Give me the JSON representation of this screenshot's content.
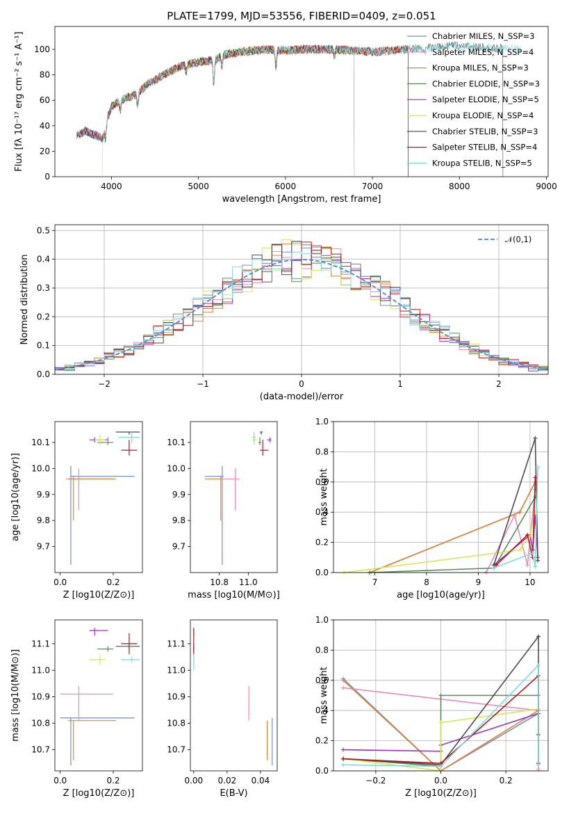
{
  "figure_title": "PLATE=1799, MJD=53556, FIBERID=0409, z=0.051",
  "model_colors": [
    "#6a8fd0",
    "#e98bb5",
    "#de8434",
    "#5a8a5a",
    "#9a35b8",
    "#d6e855",
    "#4a4a4a",
    "#b01a1a",
    "#80d8dc"
  ],
  "chart_data": [
    {
      "id": "spectrum",
      "type": "line",
      "title": "PLATE=1799, MJD=53556, FIBERID=0409, z=0.051",
      "xlabel": "wavelength [Angstrom, rest frame]",
      "ylabel": "Flux [fλ 10⁻¹⁷ erg cm⁻² s⁻¹ A⁻¹]",
      "xlim": [
        3350,
        9020
      ],
      "ylim": [
        0,
        118
      ],
      "xticks": [
        4000,
        5000,
        6000,
        7000,
        8000,
        9000
      ],
      "yticks": [
        0,
        20,
        40,
        60,
        80,
        100
      ],
      "legend_position": "upper right",
      "series": [
        {
          "name": "Chabrier MILES, N_SSP=3",
          "x_range": [
            3600,
            7410
          ]
        },
        {
          "name": "Salpeter MILES, N_SSP=4",
          "x_range": [
            3600,
            7410
          ]
        },
        {
          "name": "Kroupa MILES, N_SSP=3",
          "x_range": [
            3600,
            7410
          ]
        },
        {
          "name": "Chabrier ELODIE, N_SSP=3",
          "x_range": [
            3600,
            6790
          ]
        },
        {
          "name": "Salpeter ELODIE, N_SSP=5",
          "x_range": [
            3600,
            6790
          ]
        },
        {
          "name": "Kroupa ELODIE, N_SSP=4",
          "x_range": [
            3900,
            6790
          ]
        },
        {
          "name": "Chabrier STELIB, N_SSP=3",
          "x_range": [
            3600,
            8500
          ]
        },
        {
          "name": "Salpeter STELIB, N_SSP=4",
          "x_range": [
            3600,
            7410
          ]
        },
        {
          "name": "Kroupa STELIB, N_SSP=5",
          "x_range": [
            3600,
            8700
          ]
        }
      ],
      "continuum_points": [
        [
          3600,
          32
        ],
        [
          3700,
          36
        ],
        [
          3800,
          33
        ],
        [
          3900,
          30
        ],
        [
          3950,
          45
        ],
        [
          4000,
          55
        ],
        [
          4100,
          60
        ],
        [
          4300,
          65
        ],
        [
          4400,
          72
        ],
        [
          4600,
          80
        ],
        [
          4800,
          87
        ],
        [
          5000,
          90
        ],
        [
          5200,
          92
        ],
        [
          5300,
          96
        ],
        [
          5500,
          98
        ],
        [
          5800,
          100
        ],
        [
          6000,
          99
        ],
        [
          6200,
          100
        ],
        [
          6500,
          100
        ],
        [
          6800,
          99
        ],
        [
          7000,
          98
        ],
        [
          7200,
          99
        ],
        [
          7400,
          100
        ],
        [
          7600,
          101
        ],
        [
          7800,
          102
        ],
        [
          8000,
          103
        ],
        [
          8200,
          102
        ],
        [
          8400,
          101
        ],
        [
          8600,
          100
        ],
        [
          8700,
          100
        ]
      ],
      "dips": [
        [
          3933,
          -10
        ],
        [
          4101,
          -8
        ],
        [
          4300,
          -10
        ],
        [
          4861,
          -6
        ],
        [
          5175,
          -18
        ],
        [
          5270,
          -8
        ],
        [
          5890,
          -14
        ],
        [
          6563,
          -5
        ],
        [
          7600,
          -6
        ]
      ]
    },
    {
      "id": "residuals",
      "type": "histogram",
      "xlabel": "(data-model)/error",
      "ylabel": "Normed distribution",
      "xlim": [
        -2.5,
        2.5
      ],
      "ylim": [
        0,
        0.52
      ],
      "xticks": [
        -2,
        -1,
        0,
        1,
        2
      ],
      "yticks": [
        0.0,
        0.1,
        0.2,
        0.3,
        0.4,
        0.5
      ],
      "grid": true,
      "legend_position": "upper right",
      "reference_curve": {
        "name": "𝒩(0,1)",
        "mean": 0,
        "sigma": 1,
        "style": "dashed"
      },
      "bin_range": [
        -2.5,
        2.5
      ],
      "bins": 50
    },
    {
      "id": "age-vs-z",
      "type": "scatter",
      "xlabel": "Z [log10(Z/Z⊙)]",
      "ylabel": "age  [log10(age/yr)]",
      "xlim": [
        -0.02,
        0.31
      ],
      "ylim": [
        9.6,
        10.18
      ],
      "xticks": [
        0.0,
        0.2
      ],
      "yticks": [
        9.7,
        9.8,
        9.9,
        10.0,
        10.1
      ],
      "points": [
        {
          "x": 0.04,
          "y": 9.97,
          "xerr": [
            0.04,
            0.28
          ],
          "yerr": [
            9.63,
            10.01
          ]
        },
        {
          "x": 0.07,
          "y": 9.96,
          "xerr": [
            0.02,
            0.2
          ],
          "yerr": [
            9.84,
            10.0
          ]
        },
        {
          "x": 0.05,
          "y": 9.96,
          "xerr": [
            0.03,
            0.21
          ],
          "yerr": [
            9.8,
            9.97
          ]
        },
        {
          "x": 0.18,
          "y": 10.1,
          "xerr": [
            0.14,
            0.2
          ],
          "yerr": [
            10.09,
            10.12
          ]
        },
        {
          "x": 0.13,
          "y": 10.11,
          "xerr": [
            0.11,
            0.18
          ],
          "yerr": [
            10.1,
            10.12
          ]
        },
        {
          "x": 0.15,
          "y": 10.11,
          "xerr": [
            0.13,
            0.17
          ],
          "yerr": [
            10.09,
            10.13
          ]
        },
        {
          "x": 0.26,
          "y": 10.14,
          "xerr": [
            0.21,
            0.3
          ],
          "yerr": [
            10.13,
            10.14
          ]
        },
        {
          "x": 0.26,
          "y": 10.07,
          "xerr": [
            0.23,
            0.29
          ],
          "yerr": [
            10.05,
            10.11
          ]
        },
        {
          "x": 0.27,
          "y": 10.12,
          "xerr": [
            0.22,
            0.3
          ],
          "yerr": [
            10.1,
            10.14
          ]
        }
      ]
    },
    {
      "id": "age-vs-mass",
      "type": "scatter",
      "xlabel": "mass [log10(M/M⊙)]",
      "ylabel": "",
      "xlim": [
        10.6,
        11.2
      ],
      "ylim": [
        9.6,
        10.18
      ],
      "xticks": [
        10.8,
        11.0
      ],
      "yticks": [
        9.7,
        9.8,
        9.9,
        10.0,
        10.1
      ],
      "points": [
        {
          "x": 10.82,
          "y": 9.97,
          "xerr": [
            10.7,
            10.83
          ],
          "yerr": [
            9.63,
            10.01
          ]
        },
        {
          "x": 10.91,
          "y": 9.96,
          "xerr": [
            10.81,
            10.94
          ],
          "yerr": [
            9.84,
            10.0
          ]
        },
        {
          "x": 10.81,
          "y": 9.96,
          "xerr": [
            10.7,
            10.82
          ],
          "yerr": [
            9.8,
            9.97
          ]
        },
        {
          "x": 11.08,
          "y": 10.1,
          "xerr": [
            11.07,
            11.09
          ],
          "yerr": [
            10.09,
            10.12
          ]
        },
        {
          "x": 11.15,
          "y": 10.11,
          "xerr": [
            11.13,
            11.16
          ],
          "yerr": [
            10.1,
            10.12
          ]
        },
        {
          "x": 11.04,
          "y": 10.11,
          "xerr": [
            11.03,
            11.06
          ],
          "yerr": [
            10.09,
            10.13
          ]
        },
        {
          "x": 11.09,
          "y": 10.14,
          "xerr": [
            11.08,
            11.1
          ],
          "yerr": [
            10.13,
            10.14
          ]
        },
        {
          "x": 11.1,
          "y": 10.07,
          "xerr": [
            11.08,
            11.14
          ],
          "yerr": [
            10.05,
            10.11
          ]
        },
        {
          "x": 11.04,
          "y": 10.12,
          "xerr": [
            11.03,
            11.05
          ],
          "yerr": [
            10.1,
            10.14
          ]
        }
      ]
    },
    {
      "id": "weight-vs-age",
      "type": "line",
      "xlabel": "age  [log10(age/yr)]",
      "ylabel": "mass weight",
      "xlim": [
        6.2,
        10.35
      ],
      "ylim": [
        0,
        1.0
      ],
      "xticks": [
        7,
        8,
        9,
        10
      ],
      "yticks": [
        0.0,
        0.2,
        0.4,
        0.6,
        0.8,
        1.0
      ],
      "grid": true,
      "series": [
        {
          "x": [
            6.9,
            9.8,
            10.1
          ],
          "y": [
            0.0,
            0.4,
            0.6
          ]
        },
        {
          "x": [
            9.15,
            9.7,
            9.95,
            10.1
          ],
          "y": [
            0.0,
            0.38,
            0.05,
            0.55
          ]
        },
        {
          "x": [
            6.9,
            9.8,
            10.1
          ],
          "y": [
            0.0,
            0.4,
            0.6
          ]
        },
        {
          "x": [
            6.9,
            9.3,
            10.1
          ],
          "y": [
            0.0,
            0.03,
            0.5
          ]
        },
        {
          "x": [
            9.3,
            10.0,
            10.05,
            10.1,
            10.15
          ],
          "y": [
            0.05,
            0.25,
            0.15,
            0.38,
            0.1
          ]
        },
        {
          "x": [
            6.4,
            9.8,
            10.0,
            10.1
          ],
          "y": [
            0.0,
            0.15,
            0.25,
            0.4
          ]
        },
        {
          "x": [
            9.3,
            10.1,
            10.15
          ],
          "y": [
            0.05,
            0.89,
            0.08
          ]
        },
        {
          "x": [
            9.35,
            9.95,
            10.05,
            10.1
          ],
          "y": [
            0.05,
            0.25,
            0.1,
            0.63
          ]
        },
        {
          "x": [
            9.3,
            10.05,
            10.1,
            10.15
          ],
          "y": [
            0.03,
            0.13,
            0.04,
            0.7
          ]
        }
      ]
    },
    {
      "id": "mass-vs-z",
      "type": "scatter",
      "xlabel": "Z [log10(Z/Z⊙)]",
      "ylabel": "mass [log10(M/M⊙)]",
      "xlim": [
        -0.02,
        0.31
      ],
      "ylim": [
        10.62,
        11.19
      ],
      "xticks": [
        0.0,
        0.2
      ],
      "yticks": [
        10.7,
        10.8,
        10.9,
        11.0,
        11.1
      ],
      "points": [
        {
          "x": 0.04,
          "y": 10.82,
          "xerr": [
            0.0,
            0.28
          ],
          "yerr": [
            10.64,
            10.82
          ]
        },
        {
          "x": 0.07,
          "y": 10.91,
          "xerr": [
            0.0,
            0.2
          ],
          "yerr": [
            10.81,
            10.94
          ]
        },
        {
          "x": 0.05,
          "y": 10.81,
          "xerr": [
            0.03,
            0.21
          ],
          "yerr": [
            10.66,
            10.81
          ]
        },
        {
          "x": 0.18,
          "y": 11.08,
          "xerr": [
            0.14,
            0.2
          ],
          "yerr": [
            11.07,
            11.09
          ]
        },
        {
          "x": 0.13,
          "y": 11.15,
          "xerr": [
            0.11,
            0.18
          ],
          "yerr": [
            11.13,
            11.16
          ]
        },
        {
          "x": 0.15,
          "y": 11.04,
          "xerr": [
            0.11,
            0.17
          ],
          "yerr": [
            11.02,
            11.06
          ]
        },
        {
          "x": 0.26,
          "y": 11.09,
          "xerr": [
            0.21,
            0.3
          ],
          "yerr": [
            11.08,
            11.1
          ]
        },
        {
          "x": 0.26,
          "y": 11.1,
          "xerr": [
            0.23,
            0.29
          ],
          "yerr": [
            11.06,
            11.14
          ]
        },
        {
          "x": 0.27,
          "y": 11.04,
          "xerr": [
            0.23,
            0.3
          ],
          "yerr": [
            11.03,
            11.05
          ]
        }
      ]
    },
    {
      "id": "mass-vs-ebv",
      "type": "scatter",
      "xlabel": "E(B-V)",
      "ylabel": "",
      "xlim": [
        -0.002,
        0.05
      ],
      "ylim": [
        10.62,
        11.19
      ],
      "xticks": [
        0.0,
        0.02,
        0.04
      ],
      "yticks": [
        10.7,
        10.8,
        10.9,
        11.0,
        11.1
      ],
      "points": [
        {
          "x": 0.047,
          "y": 10.72,
          "yerr": [
            10.64,
            10.82
          ]
        },
        {
          "x": 0.033,
          "y": 10.87,
          "yerr": [
            10.81,
            10.94
          ]
        },
        {
          "x": 0.044,
          "y": 10.73,
          "yerr": [
            10.66,
            10.81
          ]
        },
        {
          "x": 0.0,
          "y": 11.08,
          "yerr": [
            11.07,
            11.09
          ]
        },
        {
          "x": 0.0,
          "y": 11.15,
          "yerr": [
            11.13,
            11.16
          ]
        },
        {
          "x": 0.0,
          "y": 11.04,
          "yerr": [
            11.02,
            11.06
          ]
        },
        {
          "x": 0.0,
          "y": 11.09,
          "yerr": [
            11.08,
            11.1
          ]
        },
        {
          "x": 0.0,
          "y": 11.1,
          "yerr": [
            11.06,
            11.16
          ]
        },
        {
          "x": 0.0,
          "y": 11.03,
          "yerr": [
            11.0,
            11.06
          ]
        }
      ]
    },
    {
      "id": "weight-vs-z",
      "type": "line",
      "xlabel": "Z [log10(Z/Z⊙)]",
      "ylabel": "mass weight",
      "xlim": [
        -0.33,
        0.33
      ],
      "ylim": [
        0,
        1.0
      ],
      "xticks": [
        -0.2,
        0.0,
        0.2
      ],
      "yticks": [
        0.0,
        0.2,
        0.4,
        0.6,
        0.8,
        1.0
      ],
      "grid": true,
      "series": [
        {
          "x": [
            -0.3,
            0.0,
            0.3
          ],
          "y": [
            0.61,
            0.0,
            0.38
          ]
        },
        {
          "x": [
            -0.3,
            0.3,
            0.3
          ],
          "y": [
            0.55,
            0.4,
            0.01
          ]
        },
        {
          "x": [
            -0.3,
            0.0,
            0.3
          ],
          "y": [
            0.6,
            0.0,
            0.4
          ]
        },
        {
          "x": [
            -0.3,
            0.0,
            0.0,
            0.3
          ],
          "y": [
            0.08,
            0.03,
            0.5,
            0.5
          ]
        },
        {
          "x": [
            -0.3,
            0.0,
            0.0,
            0.3
          ],
          "y": [
            0.14,
            0.13,
            0.17,
            0.38
          ]
        },
        {
          "x": [
            -0.3,
            0.0,
            0.0,
            0.3
          ],
          "y": [
            0.08,
            0.0,
            0.32,
            0.41
          ]
        },
        {
          "x": [
            -0.3,
            0.0,
            0.3,
            0.3
          ],
          "y": [
            0.08,
            0.04,
            0.89,
            0.05
          ]
        },
        {
          "x": [
            -0.3,
            0.0,
            0.3,
            0.3
          ],
          "y": [
            0.08,
            0.05,
            0.63,
            0.24
          ]
        },
        {
          "x": [
            -0.3,
            0.0,
            0.3,
            0.3
          ],
          "y": [
            0.04,
            0.03,
            0.7,
            0.04
          ]
        }
      ]
    }
  ]
}
